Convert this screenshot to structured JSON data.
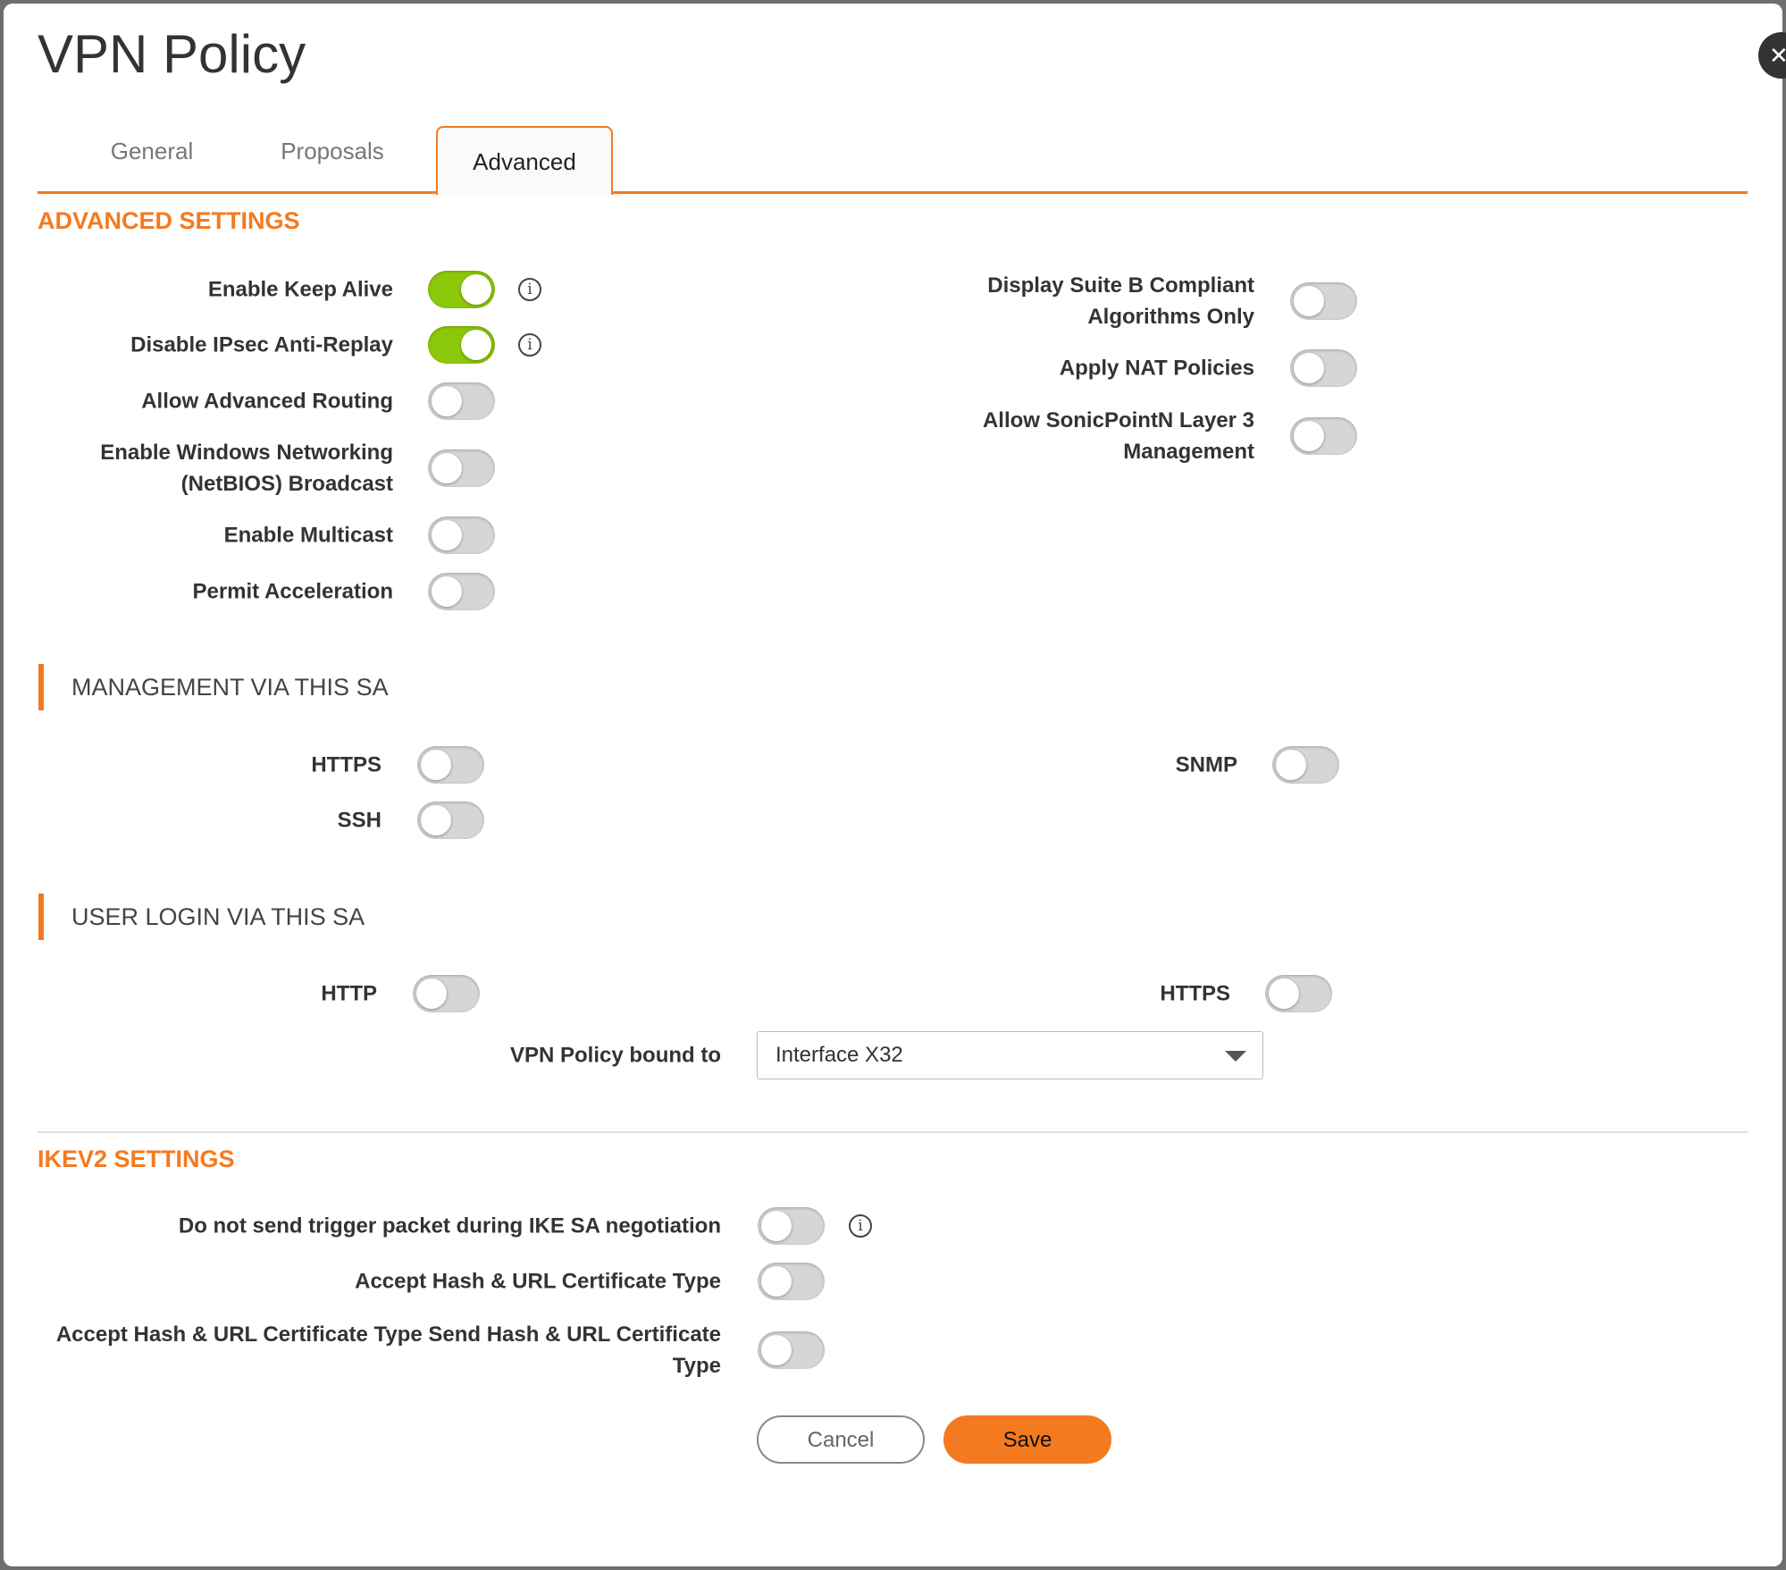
{
  "title": "VPN Policy",
  "close_icon": "close-icon",
  "tabs": [
    {
      "label": "General"
    },
    {
      "label": "Proposals"
    },
    {
      "label": "Advanced",
      "active": true
    }
  ],
  "advanced": {
    "heading": "ADVANCED SETTINGS",
    "left": [
      {
        "label": "Enable Keep Alive",
        "on": true,
        "info": true
      },
      {
        "label": "Disable IPsec Anti-Replay",
        "on": true,
        "info": true
      },
      {
        "label": "Allow Advanced Routing",
        "on": false
      },
      {
        "label": "Enable Windows Networking (NetBIOS) Broadcast",
        "on": false
      },
      {
        "label": "Enable Multicast",
        "on": false
      },
      {
        "label": "Permit Acceleration",
        "on": false
      }
    ],
    "right": [
      {
        "label": "Display Suite B Compliant Algorithms Only",
        "on": false
      },
      {
        "label": "Apply NAT Policies",
        "on": false
      },
      {
        "label": "Allow SonicPointN Layer 3 Management",
        "on": false
      }
    ]
  },
  "management": {
    "heading": "MANAGEMENT VIA THIS SA",
    "https": {
      "label": "HTTPS",
      "on": false
    },
    "ssh": {
      "label": "SSH",
      "on": false
    },
    "snmp": {
      "label": "SNMP",
      "on": false
    }
  },
  "user_login": {
    "heading": "USER LOGIN VIA THIS SA",
    "http": {
      "label": "HTTP",
      "on": false
    },
    "https": {
      "label": "HTTPS",
      "on": false
    }
  },
  "bound": {
    "label": "VPN Policy bound to",
    "value": "Interface X32"
  },
  "ikev2": {
    "heading": "IKEV2 SETTINGS",
    "items": [
      {
        "label": "Do not send trigger packet during IKE SA negotiation",
        "on": false,
        "info": true
      },
      {
        "label": "Accept Hash & URL Certificate Type",
        "on": false
      },
      {
        "label": "Accept Hash & URL Certificate Type Send Hash & URL Certificate Type",
        "on": false
      }
    ]
  },
  "buttons": {
    "cancel": "Cancel",
    "save": "Save"
  },
  "colors": {
    "accent": "#f47a20",
    "toggle_on": "#8cc80a",
    "toggle_off": "#d6d6d6"
  }
}
